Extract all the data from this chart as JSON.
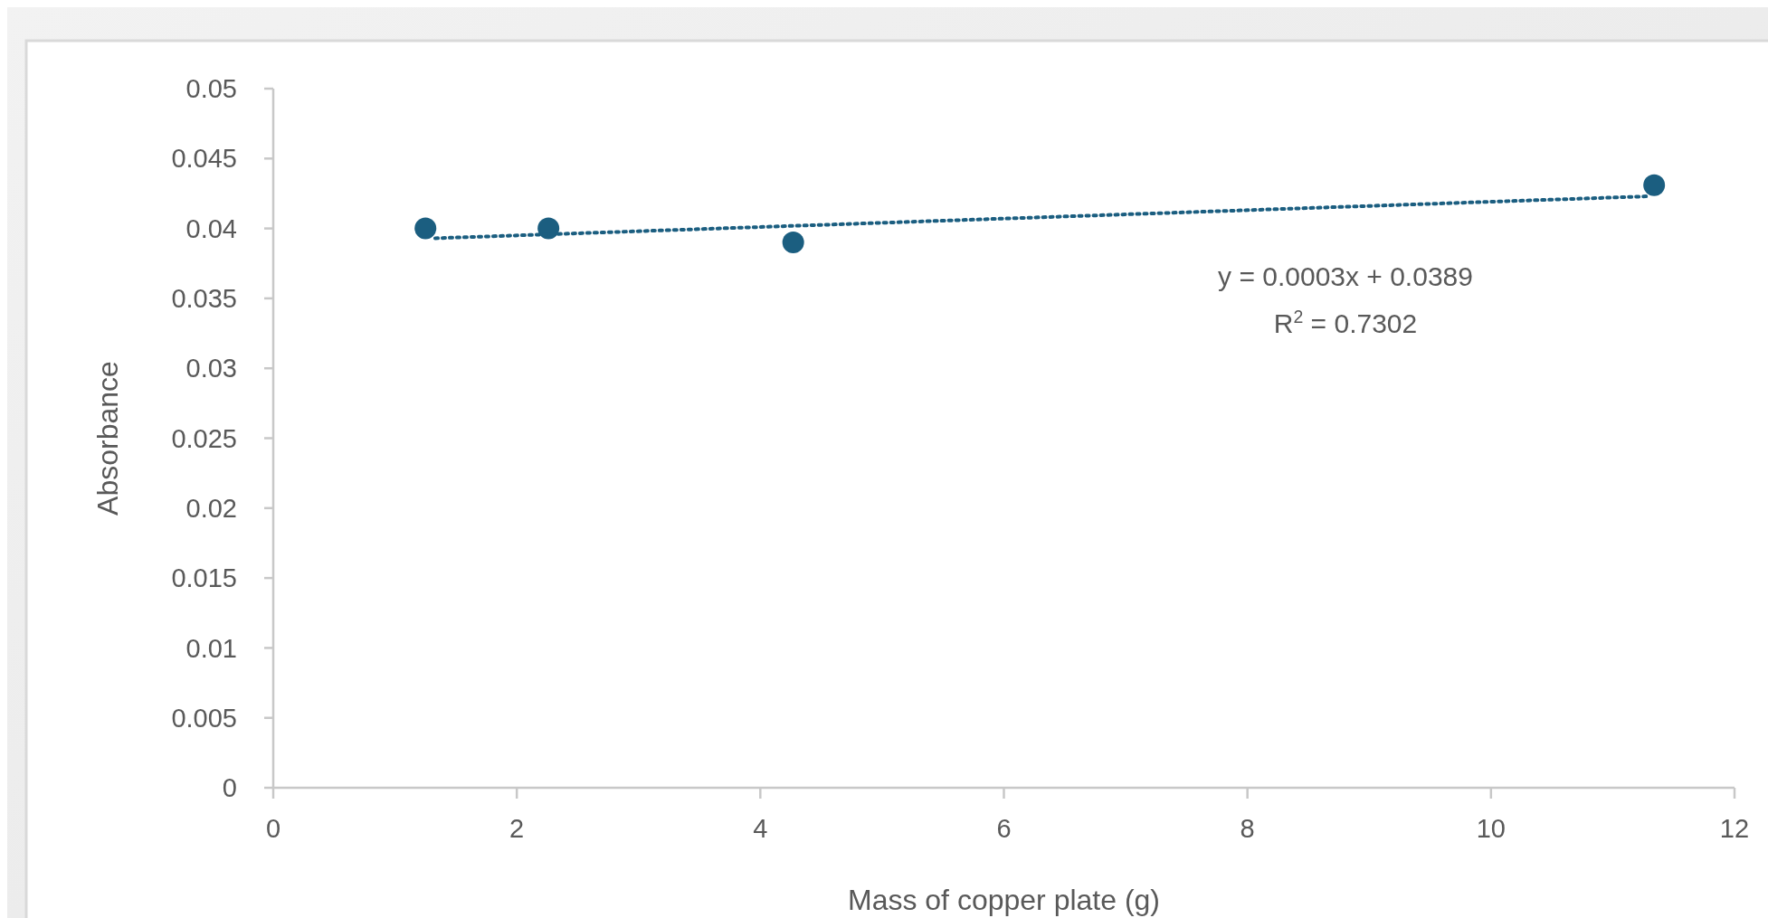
{
  "chart_data": {
    "type": "scatter",
    "xlabel": "Mass of copper plate (g)",
    "ylabel": "Absorbance",
    "xlim": [
      0,
      12
    ],
    "xticks": [
      0,
      2,
      4,
      6,
      8,
      10,
      12
    ],
    "ylim": [
      0,
      0.05
    ],
    "yticks": [
      0,
      0.005,
      0.01,
      0.015,
      0.02,
      0.025,
      0.03,
      0.035,
      0.04,
      0.045,
      0.05
    ],
    "annotations": [
      "y = 0.0003x + 0.0389",
      "R$^{2}$ = 0.7302"
    ],
    "series": [
      {
        "type": "scatter",
        "color": "#1b5e80",
        "marker": "circle",
        "x": [
          1.25,
          2.26,
          4.27,
          11.34
        ],
        "values": [
          0.04,
          0.04,
          0.039,
          0.0431
        ]
      },
      {
        "type": "line",
        "color": "#1b5e80",
        "marker": "none",
        "line_style": "dotted",
        "x": [
          1.33,
          11.29
        ],
        "values": [
          0.0393,
          0.0423
        ]
      }
    ]
  }
}
